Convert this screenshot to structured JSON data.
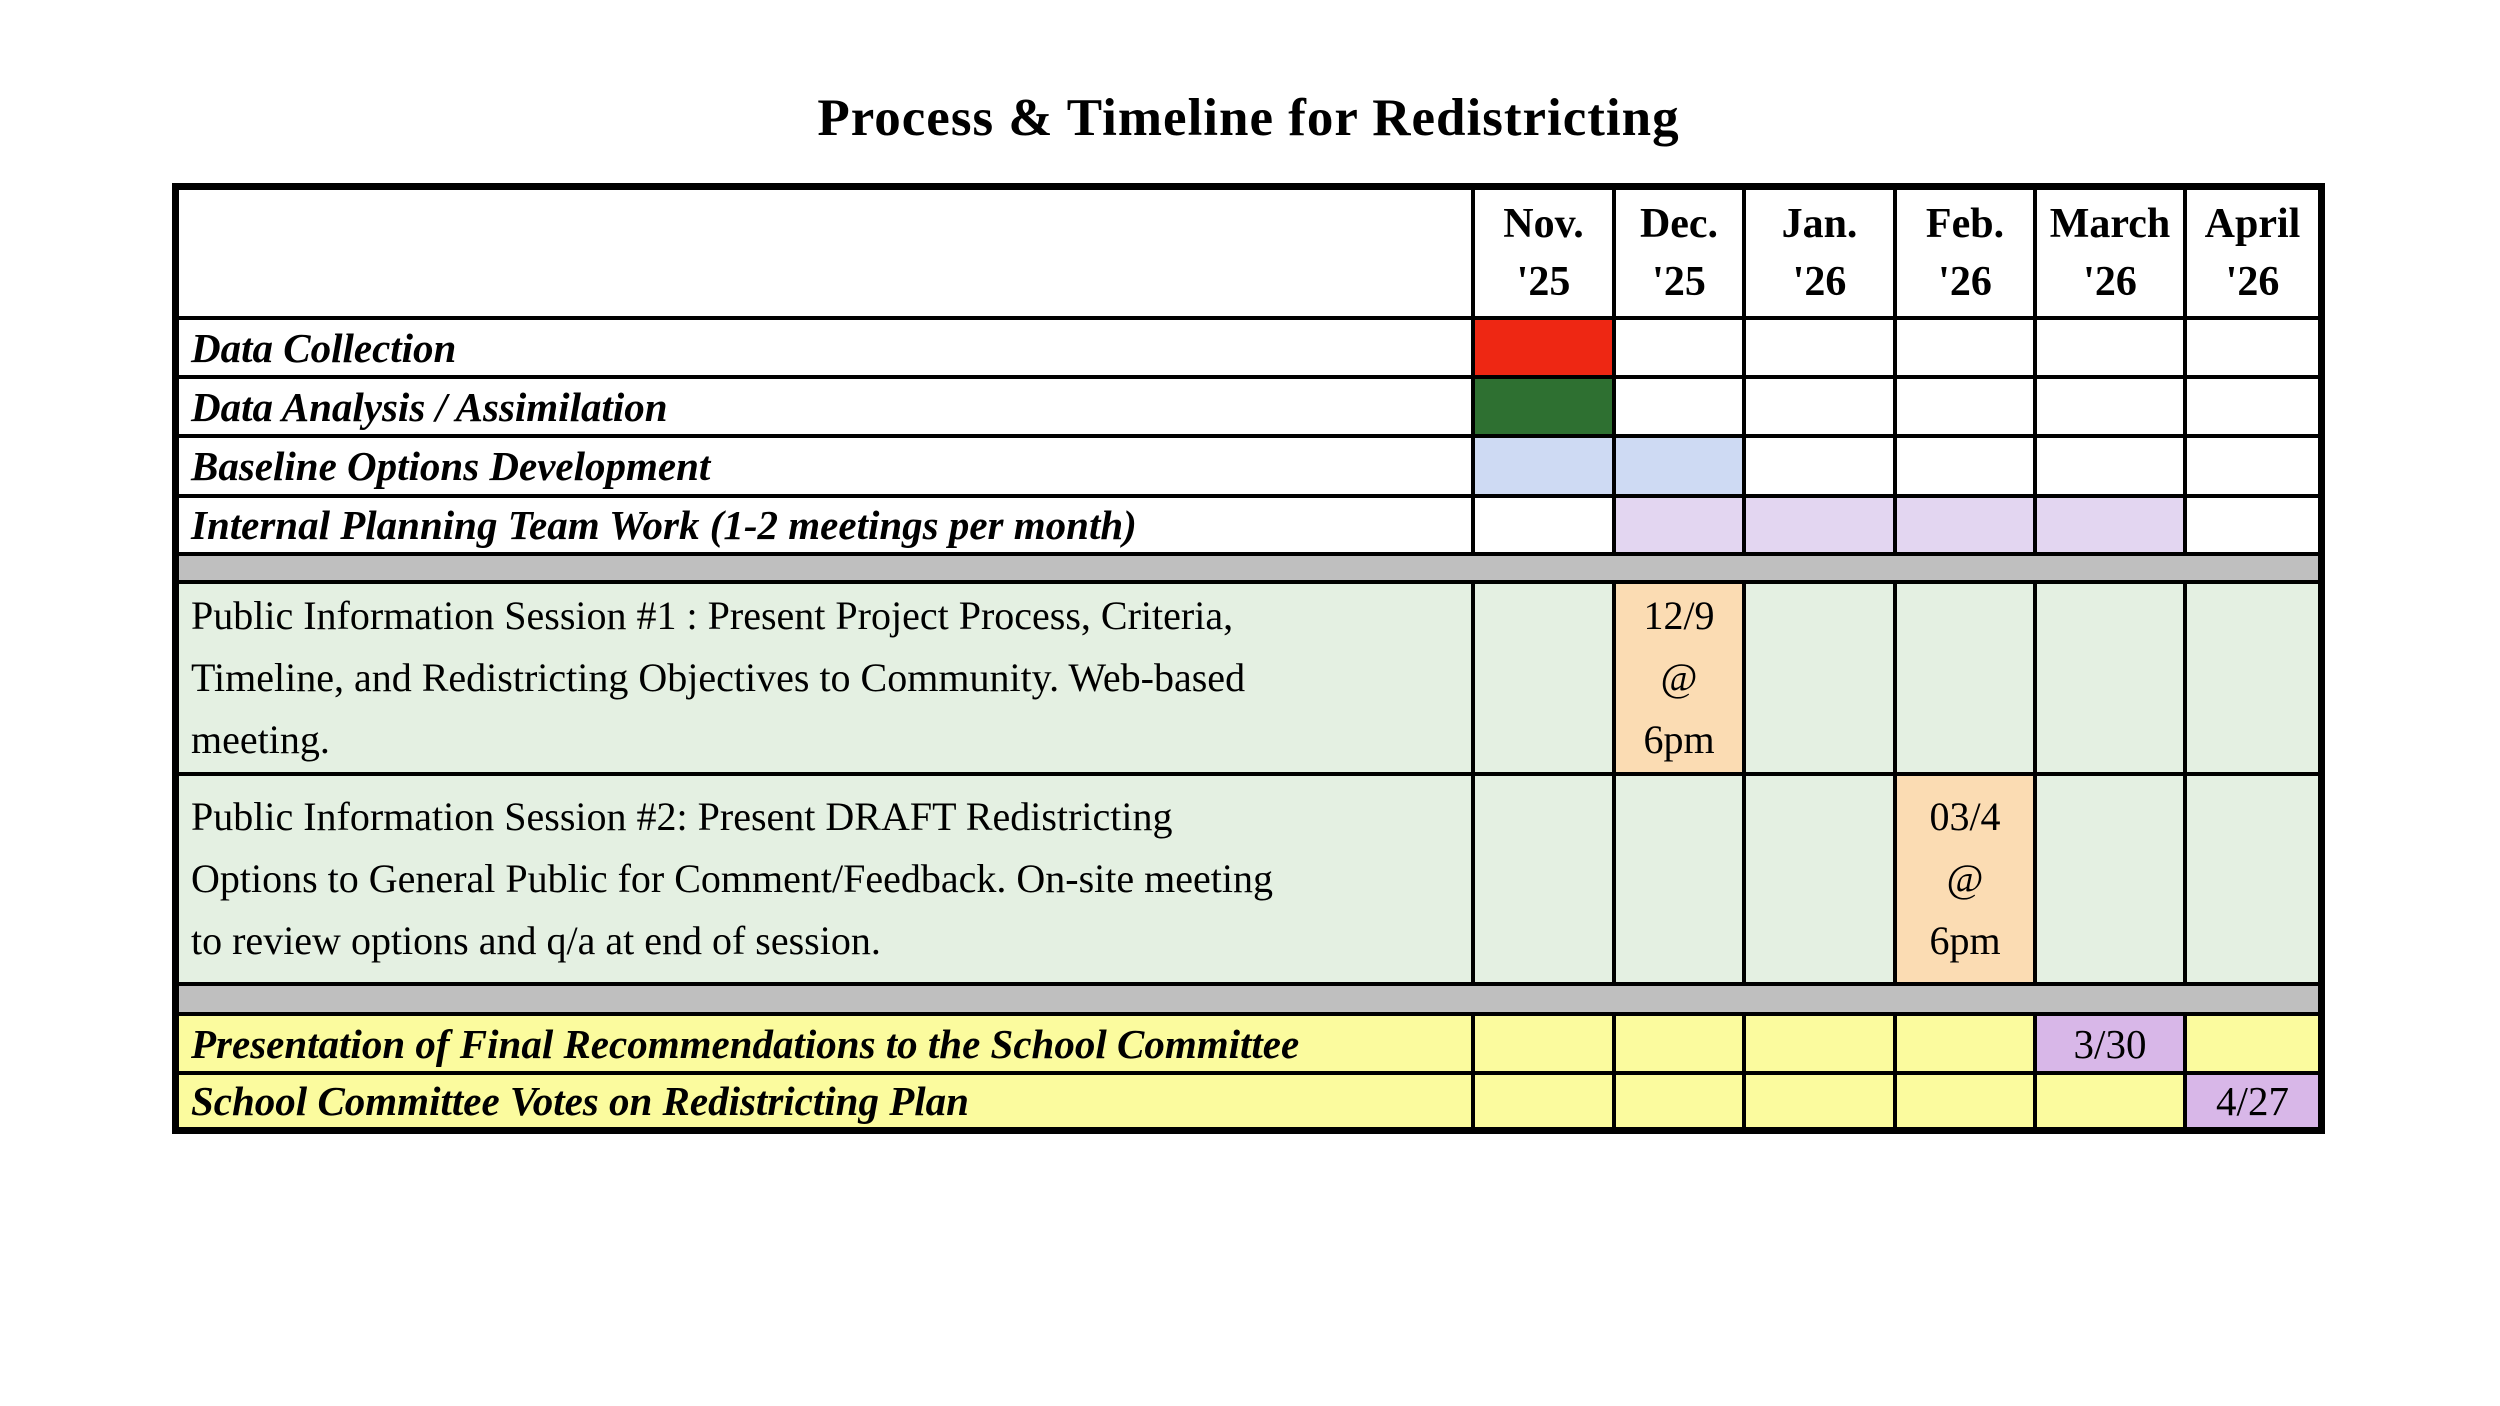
{
  "title": "Process & Timeline for Redistricting",
  "colors": {
    "border": "#000000",
    "red": "#EE2713",
    "green": "#2E7031",
    "blue": "#CEDAF3",
    "lavender": "#E3D6F1",
    "gray": "#BFBFBF",
    "light-green": "#E4F0E2",
    "orange": "#FBDCB3",
    "yellow": "#FBFB9E",
    "purple": "#D8B7E8"
  },
  "chart_data": {
    "type": "table",
    "title": "Process & Timeline for Redistricting",
    "columns": [
      {
        "month": "Nov.",
        "year": "'25"
      },
      {
        "month": "Dec.",
        "year": "'25"
      },
      {
        "month": "Jan.",
        "year": "'26"
      },
      {
        "month": "Feb.",
        "year": "'26"
      },
      {
        "month": "March",
        "year": "'26"
      },
      {
        "month": "April",
        "year": "'26"
      }
    ],
    "rows": {
      "data_collection": {
        "label": "Data Collection",
        "filled_months": [
          "Nov. '25"
        ],
        "fill_color": "#EE2713"
      },
      "data_analysis": {
        "label": "Data Analysis / Assimilation",
        "filled_months": [
          "Nov. '25"
        ],
        "fill_color": "#2E7031"
      },
      "baseline_options": {
        "label": "Baseline Options Development",
        "filled_months": [
          "Nov. '25",
          "Dec. '25"
        ],
        "fill_color": "#CEDAF3"
      },
      "internal_planning": {
        "label": "Internal Planning Team Work (1-2 meetings per month)",
        "filled_months": [
          "Dec. '25",
          "Jan. '26",
          "Feb. '26",
          "March '26"
        ],
        "fill_color": "#E3D6F1"
      },
      "session1": {
        "label": "Public Information Session #1 : Present Project Process, Criteria,\nTimeline, and Redistricting Objectives to Community.  Web-based\nmeeting.",
        "event": "12/9\n@\n6pm",
        "event_fill_color": "#FBDCB3"
      },
      "session2": {
        "label": "Public Information Session #2: Present DRAFT Redistricting\nOptions to General Public for Comment/Feedback.  On-site meeting\nto review options and q/a at end of session.",
        "event": "03/4\n@\n6pm",
        "event_fill_color": "#FBDCB3"
      },
      "final_presentation": {
        "label": "Presentation of Final Recommendations to the School Committee",
        "event": "3/30",
        "event_fill_color": "#D8B7E8"
      },
      "committee_vote": {
        "label": "School Committee Votes on Redistricting Plan",
        "event": "4/27",
        "event_fill_color": "#D8B7E8"
      }
    }
  }
}
